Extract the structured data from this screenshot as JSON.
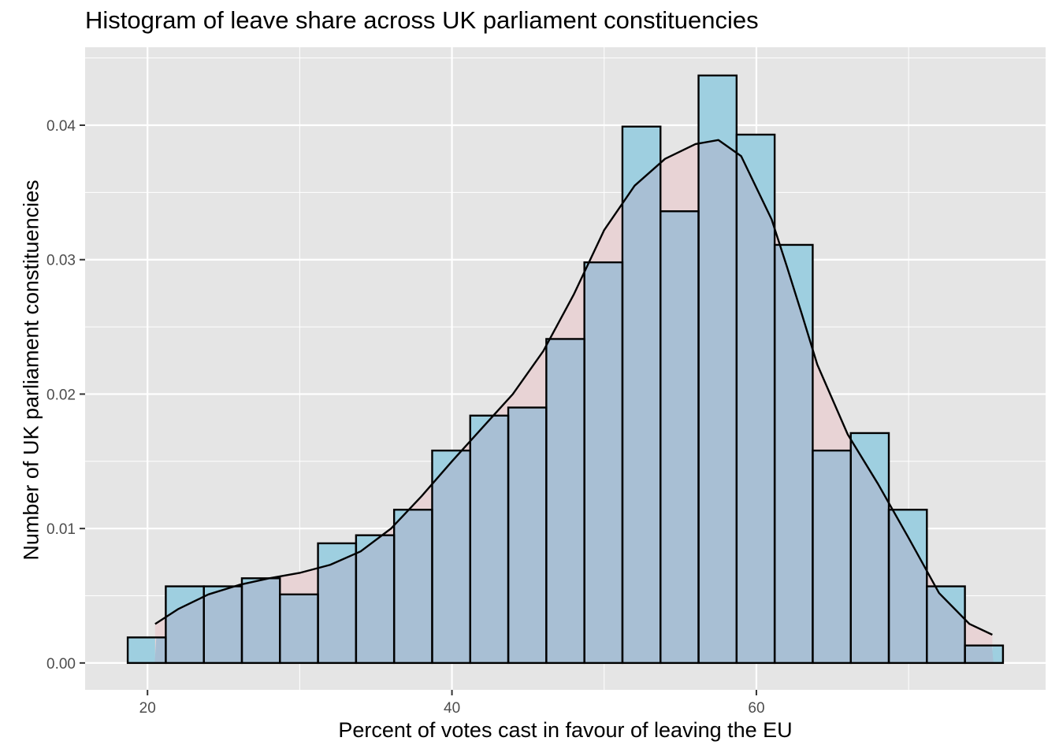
{
  "chart_data": {
    "type": "bar",
    "subtype": "histogram-with-density",
    "title": "Histogram of leave share across UK parliament constituencies",
    "xlabel": "Percent of votes cast in favour of leaving the EU",
    "ylabel": "Number of UK parliament constituencies",
    "xlim": [
      15.9,
      79.0
    ],
    "ylim": [
      -0.002,
      0.0458
    ],
    "x_ticks": [
      20,
      40,
      60
    ],
    "x_tick_labels": [
      "20",
      "40",
      "60"
    ],
    "y_ticks": [
      0.0,
      0.01,
      0.02,
      0.03,
      0.04
    ],
    "y_tick_labels": [
      "0.00",
      "0.01",
      "0.02",
      "0.03",
      "0.04"
    ],
    "grid": true,
    "bin_width": 2.5,
    "bins": [
      {
        "x0": 18.7,
        "x1": 21.2,
        "density": 0.0019
      },
      {
        "x0": 21.2,
        "x1": 23.7,
        "density": 0.0057
      },
      {
        "x0": 23.7,
        "x1": 26.2,
        "density": 0.0057
      },
      {
        "x0": 26.2,
        "x1": 28.7,
        "density": 0.0063
      },
      {
        "x0": 28.7,
        "x1": 31.2,
        "density": 0.0051
      },
      {
        "x0": 31.2,
        "x1": 33.7,
        "density": 0.0089
      },
      {
        "x0": 33.7,
        "x1": 36.2,
        "density": 0.0095
      },
      {
        "x0": 36.2,
        "x1": 38.7,
        "density": 0.0114
      },
      {
        "x0": 38.7,
        "x1": 41.2,
        "density": 0.0158
      },
      {
        "x0": 41.2,
        "x1": 43.7,
        "density": 0.0184
      },
      {
        "x0": 43.7,
        "x1": 46.2,
        "density": 0.019
      },
      {
        "x0": 46.2,
        "x1": 48.7,
        "density": 0.0241
      },
      {
        "x0": 48.7,
        "x1": 51.2,
        "density": 0.0298
      },
      {
        "x0": 51.2,
        "x1": 53.7,
        "density": 0.0399
      },
      {
        "x0": 53.7,
        "x1": 56.2,
        "density": 0.0336
      },
      {
        "x0": 56.2,
        "x1": 58.7,
        "density": 0.0437
      },
      {
        "x0": 58.7,
        "x1": 61.2,
        "density": 0.0393
      },
      {
        "x0": 61.2,
        "x1": 63.7,
        "density": 0.0311
      },
      {
        "x0": 63.7,
        "x1": 66.2,
        "density": 0.0158
      },
      {
        "x0": 66.2,
        "x1": 68.7,
        "density": 0.0171
      },
      {
        "x0": 68.7,
        "x1": 71.2,
        "density": 0.0114
      },
      {
        "x0": 71.2,
        "x1": 73.7,
        "density": 0.0057
      },
      {
        "x0": 73.7,
        "x1": 76.2,
        "density": 0.0013
      }
    ],
    "density_curve": {
      "x": [
        20.5,
        22.0,
        24.0,
        26.0,
        28.0,
        30.0,
        32.0,
        34.0,
        36.0,
        38.0,
        40.0,
        42.0,
        44.0,
        46.0,
        48.0,
        50.0,
        52.0,
        54.0,
        56.0,
        57.5,
        59.0,
        61.0,
        62.0,
        63.0,
        64.0,
        66.0,
        68.0,
        70.0,
        72.0,
        74.0,
        75.5
      ],
      "y": [
        0.0029,
        0.004,
        0.0051,
        0.0058,
        0.0063,
        0.0067,
        0.0073,
        0.0083,
        0.01,
        0.0124,
        0.015,
        0.0175,
        0.02,
        0.0232,
        0.0274,
        0.0322,
        0.0355,
        0.0375,
        0.0386,
        0.0389,
        0.0377,
        0.033,
        0.0295,
        0.0259,
        0.0222,
        0.017,
        0.0133,
        0.0093,
        0.0052,
        0.0029,
        0.0021
      ]
    },
    "colors": {
      "panel_background": "#e5e5e5",
      "grid": "#ffffff",
      "histogram_fill": "#9ecfe0",
      "density_fill": "#e8d3d5",
      "overlap_fill": "#a8bfd4",
      "outline": "#000000"
    }
  }
}
